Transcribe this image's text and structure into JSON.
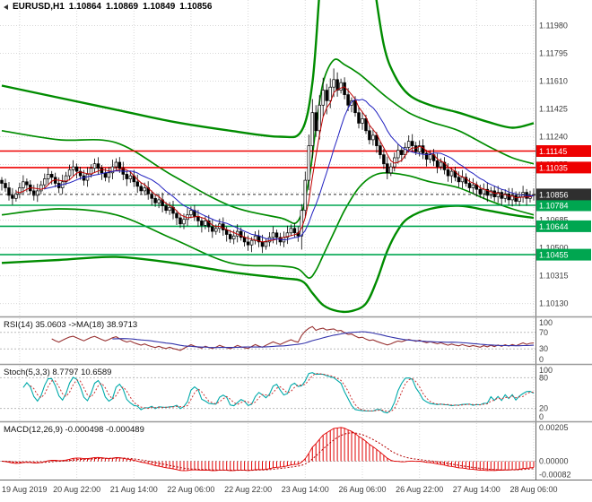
{
  "header": {
    "symbol_period": "EURUSD,H1",
    "open": "1.10864",
    "high": "1.10869",
    "low": "1.10849",
    "close": "1.10856"
  },
  "colors": {
    "background": "#FFFFFF",
    "grid": "#D8D8D8",
    "axis_text": "#3C3C3C",
    "frame": "#666666",
    "separator": "#9A9A9A",
    "candle": "#000000",
    "bull_fill": "#FFFFFF",
    "bear_fill": "#000000",
    "band": "#008C00",
    "ma_fast": "#C00000",
    "ma_slow": "#2020C0",
    "resistance": "#EE0000",
    "support": "#00A650",
    "current": "#2F2F2F",
    "rsi_line": "#993333",
    "rsi_ma": "#3333AA",
    "stoch_main": "#00AAAA",
    "stoch_signal": "#CC3333",
    "macd": "#E00000",
    "macd_signal": "#B30000"
  },
  "chart_data": {
    "type": "candlestick",
    "title": "EURUSD,H1",
    "symbol": "EURUSD",
    "timeframe": "H1",
    "bar_count": 150,
    "price_axis": {
      "min": 1.1005,
      "max": 1.1215,
      "ticks": [
        "1.11980",
        "1.11795",
        "1.11610",
        "1.11425",
        "1.11240",
        "1.11055",
        "1.10870",
        "1.10685",
        "1.10500",
        "1.10315",
        "1.10130"
      ]
    },
    "x_labels": [
      {
        "text": "19 Aug 2019",
        "bar": 5
      },
      {
        "text": "20 Aug 22:00",
        "bar": 21
      },
      {
        "text": "21 Aug 14:00",
        "bar": 37
      },
      {
        "text": "22 Aug 06:00",
        "bar": 53
      },
      {
        "text": "22 Aug 22:00",
        "bar": 69
      },
      {
        "text": "23 Aug 14:00",
        "bar": 85
      },
      {
        "text": "26 Aug 06:00",
        "bar": 101
      },
      {
        "text": "26 Aug 22:00",
        "bar": 117
      },
      {
        "text": "27 Aug 14:00",
        "bar": 133
      },
      {
        "text": "28 Aug 06:00",
        "bar": 149
      }
    ],
    "closes": [
      1.1093,
      1.109,
      1.1085,
      1.1083,
      1.1086,
      1.109,
      1.1094,
      1.1092,
      1.1088,
      1.1085,
      1.1088,
      1.1092,
      1.1096,
      1.1099,
      1.1097,
      1.1093,
      1.109,
      1.1094,
      1.1098,
      1.1102,
      1.1104,
      1.1101,
      1.1098,
      1.1095,
      1.1099,
      1.1103,
      1.1106,
      1.1103,
      1.11,
      1.1097,
      1.11,
      1.1104,
      1.1107,
      1.1103,
      1.1099,
      1.1096,
      1.1098,
      1.1094,
      1.1091,
      1.1088,
      1.109,
      1.1086,
      1.1083,
      1.108,
      1.1082,
      1.1078,
      1.1075,
      1.1077,
      1.1073,
      1.107,
      1.1066,
      1.1069,
      1.1072,
      1.1075,
      1.1071,
      1.1068,
      1.1065,
      1.1068,
      1.1064,
      1.1061,
      1.1063,
      1.1066,
      1.1062,
      1.1059,
      1.1056,
      1.1058,
      1.1061,
      1.1057,
      1.1054,
      1.1052,
      1.1055,
      1.1058,
      1.1054,
      1.1051,
      1.1054,
      1.1057,
      1.106,
      1.1057,
      1.1054,
      1.1057,
      1.106,
      1.1063,
      1.106,
      1.1058,
      1.1075,
      1.1095,
      1.1118,
      1.114,
      1.1128,
      1.1145,
      1.1155,
      1.1148,
      1.1157,
      1.1162,
      1.1155,
      1.116,
      1.1152,
      1.1145,
      1.1148,
      1.114,
      1.1133,
      1.1136,
      1.1128,
      1.1122,
      1.1125,
      1.1118,
      1.1112,
      1.1106,
      1.11,
      1.1104,
      1.111,
      1.1115,
      1.1112,
      1.1117,
      1.1121,
      1.1118,
      1.1114,
      1.1118,
      1.1113,
      1.1109,
      1.1112,
      1.1108,
      1.1104,
      1.1107,
      1.1102,
      1.1098,
      1.1101,
      1.1097,
      1.1094,
      1.1097,
      1.1093,
      1.109,
      1.1092,
      1.1089,
      1.1086,
      1.1089,
      1.1085,
      1.1088,
      1.1084,
      1.1087,
      1.1083,
      1.1086,
      1.1082,
      1.1085,
      1.1081,
      1.1084,
      1.1087,
      1.1083,
      1.1085,
      1.10856
    ],
    "overlays": [
      {
        "name": "outer-band-upper",
        "width": 2.4,
        "points": [
          [
            0,
            1.1158
          ],
          [
            16,
            1.115
          ],
          [
            32,
            1.1142
          ],
          [
            48,
            1.1134
          ],
          [
            64,
            1.1128
          ],
          [
            78,
            1.1124
          ],
          [
            84,
            1.1128
          ],
          [
            87,
            1.116
          ],
          [
            89,
            1.122
          ],
          [
            91,
            1.128
          ],
          [
            100,
            1.129
          ],
          [
            104,
            1.123
          ],
          [
            107,
            1.1185
          ],
          [
            110,
            1.1165
          ],
          [
            114,
            1.1152
          ],
          [
            120,
            1.1145
          ],
          [
            128,
            1.114
          ],
          [
            136,
            1.1134
          ],
          [
            143,
            1.113
          ],
          [
            149,
            1.1133
          ]
        ]
      },
      {
        "name": "outer-band-lower",
        "width": 2.4,
        "points": [
          [
            0,
            1.104
          ],
          [
            16,
            1.1042
          ],
          [
            32,
            1.1044
          ],
          [
            48,
            1.104
          ],
          [
            64,
            1.1034
          ],
          [
            78,
            1.103
          ],
          [
            84,
            1.1028
          ],
          [
            87,
            1.102
          ],
          [
            90,
            1.1012
          ],
          [
            94,
            1.1008
          ],
          [
            98,
            1.1008
          ],
          [
            102,
            1.1013
          ],
          [
            105,
            1.1028
          ],
          [
            108,
            1.1048
          ],
          [
            111,
            1.1062
          ],
          [
            114,
            1.107
          ],
          [
            120,
            1.1076
          ],
          [
            128,
            1.1078
          ],
          [
            136,
            1.1075
          ],
          [
            143,
            1.1072
          ],
          [
            149,
            1.107
          ]
        ]
      },
      {
        "name": "inner-band-upper",
        "width": 1.7,
        "points": [
          [
            0,
            1.1128
          ],
          [
            16,
            1.1122
          ],
          [
            32,
            1.112
          ],
          [
            48,
            1.1098
          ],
          [
            64,
            1.1078
          ],
          [
            78,
            1.107
          ],
          [
            83,
            1.1068
          ],
          [
            86,
            1.1095
          ],
          [
            88,
            1.113
          ],
          [
            90,
            1.116
          ],
          [
            93,
            1.1175
          ],
          [
            96,
            1.1172
          ],
          [
            100,
            1.1166
          ],
          [
            104,
            1.1158
          ],
          [
            108,
            1.115
          ],
          [
            114,
            1.114
          ],
          [
            120,
            1.1134
          ],
          [
            128,
            1.1128
          ],
          [
            136,
            1.1118
          ],
          [
            143,
            1.111
          ],
          [
            149,
            1.1106
          ]
        ]
      },
      {
        "name": "inner-band-lower",
        "width": 1.7,
        "points": [
          [
            0,
            1.1072
          ],
          [
            16,
            1.1076
          ],
          [
            32,
            1.1072
          ],
          [
            48,
            1.1056
          ],
          [
            64,
            1.104
          ],
          [
            78,
            1.1038
          ],
          [
            83,
            1.1036
          ],
          [
            86,
            1.103
          ],
          [
            88,
            1.1035
          ],
          [
            90,
            1.1045
          ],
          [
            93,
            1.106
          ],
          [
            96,
            1.1075
          ],
          [
            100,
            1.109
          ],
          [
            104,
            1.1098
          ],
          [
            108,
            1.11
          ],
          [
            114,
            1.1098
          ],
          [
            120,
            1.1094
          ],
          [
            128,
            1.109
          ],
          [
            136,
            1.1082
          ],
          [
            143,
            1.1076
          ],
          [
            149,
            1.1072
          ]
        ]
      }
    ],
    "levels": {
      "resistance": [
        {
          "price": 1.11145,
          "label": "1.11145"
        },
        {
          "price": 1.11035,
          "label": "1.11035"
        }
      ],
      "support": [
        {
          "price": 1.10784,
          "label": "1.10784"
        },
        {
          "price": 1.10644,
          "label": "1.10644"
        },
        {
          "price": 1.10455,
          "label": "1.10455"
        }
      ],
      "current": {
        "price": 1.10856,
        "label": "1.10856"
      }
    },
    "indicators": {
      "rsi": {
        "label": "RSI(14) 35.0603 ->MA(18) 38.9713",
        "period": 14,
        "ma_period": 18,
        "value": 35.0603,
        "ma_value": 38.9713,
        "levels": [
          70,
          30
        ],
        "axis": [
          [
            100,
            "100"
          ],
          [
            70,
            "70"
          ],
          [
            30,
            "30"
          ],
          [
            0,
            "0"
          ]
        ]
      },
      "stoch": {
        "label": "Stoch(5,3,3) 8.7797 10.6589",
        "value": 8.7797,
        "signal_value": 10.6589,
        "levels": [
          80,
          20
        ],
        "axis": [
          [
            100,
            "100"
          ],
          [
            80,
            "80"
          ],
          [
            20,
            "20"
          ],
          [
            0,
            "0"
          ]
        ]
      },
      "macd": {
        "label": "MACD(12,26,9) -0.000498 -0.000489",
        "value": -0.000498,
        "signal_value": -0.000489,
        "axis": [
          [
            0.00205,
            "0.00205"
          ],
          [
            0,
            "0.00000"
          ],
          [
            -0.00082,
            "-0.00082"
          ]
        ]
      }
    }
  }
}
